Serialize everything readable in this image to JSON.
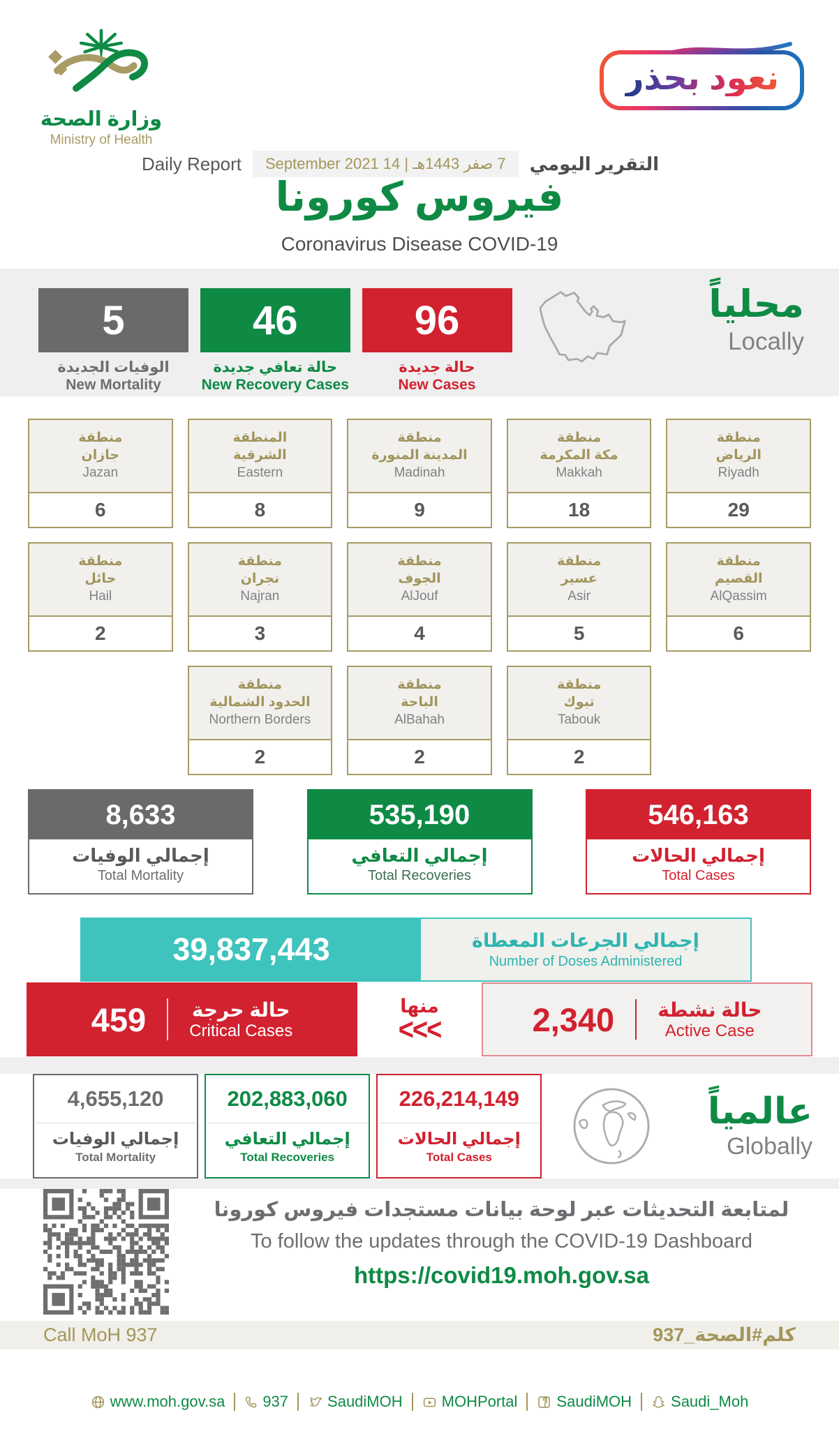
{
  "colors": {
    "green": "#0E8A45",
    "red": "#D2212F",
    "gray": "#696A6C",
    "teal": "#3FC3BD",
    "gold": "#A3965B"
  },
  "header": {
    "logo_ar": "وزارة الصحة",
    "logo_en": "Ministry of Health",
    "badge_text": "نعود بحذر",
    "report_en": "Daily Report",
    "date": "7 صفر 1443هـ | 14 September 2021",
    "report_ar": "التقرير اليومي",
    "title_ar": "فيروس كورونا",
    "title_en": "Coronavirus Disease COVID-19"
  },
  "local": {
    "heading_ar": "محلياً",
    "heading_en": "Locally",
    "stats": [
      {
        "value": "5",
        "label_ar": "الوفيات الجديدة",
        "label_en": "New Mortality"
      },
      {
        "value": "46",
        "label_ar": "حالة تعافي جديدة",
        "label_en": "New Recovery Cases"
      },
      {
        "value": "96",
        "label_ar": "حالة جديدة",
        "label_en": "New Cases"
      }
    ],
    "regions": [
      {
        "ar1": "منطقة",
        "ar2": "الرياض",
        "en": "Riyadh",
        "value": "29"
      },
      {
        "ar1": "منطقة",
        "ar2": "مكة المكرمة",
        "en": "Makkah",
        "value": "18"
      },
      {
        "ar1": "منطقة",
        "ar2": "المدينة المنورة",
        "en": "Madinah",
        "value": "9"
      },
      {
        "ar1": "المنطقة",
        "ar2": "الشرقية",
        "en": "Eastern",
        "value": "8"
      },
      {
        "ar1": "منطقة",
        "ar2": "جازان",
        "en": "Jazan",
        "value": "6"
      },
      {
        "ar1": "منطقة",
        "ar2": "القصيم",
        "en": "AlQassim",
        "value": "6"
      },
      {
        "ar1": "منطقة",
        "ar2": "عسير",
        "en": "Asir",
        "value": "5"
      },
      {
        "ar1": "منطقة",
        "ar2": "الجوف",
        "en": "AlJouf",
        "value": "4"
      },
      {
        "ar1": "منطقة",
        "ar2": "نجران",
        "en": "Najran",
        "value": "3"
      },
      {
        "ar1": "منطقة",
        "ar2": "حائل",
        "en": "Hail",
        "value": "2"
      },
      {
        "ar1": "منطقة",
        "ar2": "تبوك",
        "en": "Tabouk",
        "value": "2"
      },
      {
        "ar1": "منطقة",
        "ar2": "الباحة",
        "en": "AlBahah",
        "value": "2"
      },
      {
        "ar1": "منطقة",
        "ar2": "الحدود الشمالية",
        "en": "Northern Borders",
        "value": "2"
      }
    ],
    "totals": [
      {
        "value": "8,633",
        "label_ar": "إجمالي الوفيات",
        "label_en": "Total Mortality"
      },
      {
        "value": "535,190",
        "label_ar": "إجمالي التعافي",
        "label_en": "Total Recoveries"
      },
      {
        "value": "546,163",
        "label_ar": "إجمالي الحالات",
        "label_en": "Total Cases"
      }
    ],
    "doses": {
      "value": "39,837,443",
      "label_ar": "إجمالي الجرعات المعطاة",
      "label_en": "Number of Doses Administered"
    },
    "critical": {
      "value": "459",
      "label_ar": "حالة حرجة",
      "label_en": "Critical Cases"
    },
    "of_which": "منها",
    "chevrons": "<<<",
    "active": {
      "value": "2,340",
      "label_ar": "حالة نشطة",
      "label_en": "Active Case"
    }
  },
  "global": {
    "heading_ar": "عالمياً",
    "heading_en": "Globally",
    "stats": [
      {
        "value": "4,655,120",
        "label_ar": "إجمالي الوفيات",
        "label_en": "Total Mortality"
      },
      {
        "value": "202,883,060",
        "label_ar": "إجمالي التعافي",
        "label_en": "Total Recoveries"
      },
      {
        "value": "226,214,149",
        "label_ar": "إجمالي الحالات",
        "label_en": "Total Cases"
      }
    ]
  },
  "dashboard": {
    "line_ar": "لمتابعة التحديثات عبر لوحة بيانات مستجدات فيروس كورونا",
    "line_en": "To follow the updates through the COVID-19 Dashboard",
    "url": "https://covid19.moh.gov.sa"
  },
  "call_band": {
    "left": "Call MoH 937",
    "right": "كلم#الصحة_937"
  },
  "footer": {
    "items": [
      {
        "icon": "globe",
        "label": "www.moh.gov.sa"
      },
      {
        "icon": "phone",
        "label": "937"
      },
      {
        "icon": "twitter",
        "label": "SaudiMOH"
      },
      {
        "icon": "youtube",
        "label": "MOHPortal"
      },
      {
        "icon": "facebook",
        "label": "SaudiMOH"
      },
      {
        "icon": "snapchat",
        "label": "Saudi_Moh"
      }
    ]
  }
}
